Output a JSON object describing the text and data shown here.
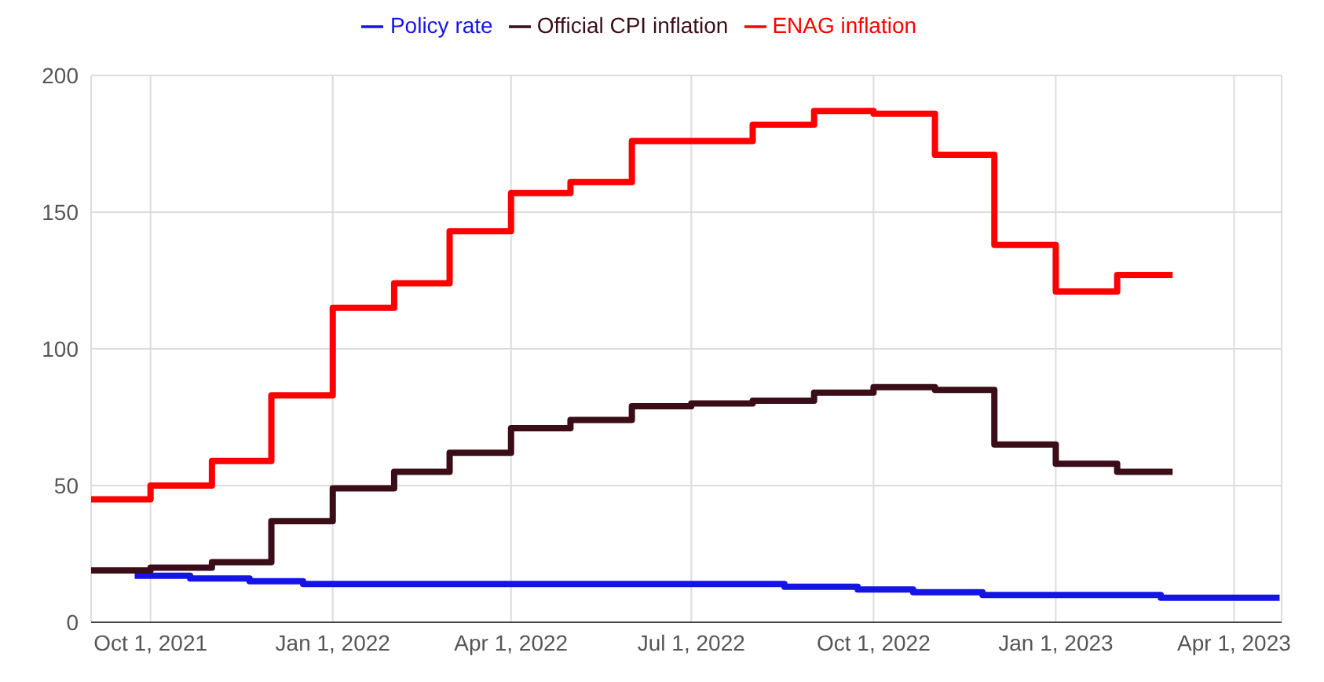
{
  "chart_data": {
    "type": "step",
    "legend": "top",
    "grid": true,
    "xlim": [
      "2021-09-01",
      "2023-04-25"
    ],
    "ylim": [
      0,
      200
    ],
    "yticks": [
      0,
      50,
      100,
      150,
      200
    ],
    "xticks": [
      {
        "value": "2021-10-01",
        "label": "Oct 1, 2021"
      },
      {
        "value": "2022-01-01",
        "label": "Jan 1, 2022"
      },
      {
        "value": "2022-04-01",
        "label": "Apr 1, 2022"
      },
      {
        "value": "2022-07-01",
        "label": "Jul 1, 2022"
      },
      {
        "value": "2022-10-01",
        "label": "Oct 1, 2022"
      },
      {
        "value": "2023-01-01",
        "label": "Jan 1, 2023"
      },
      {
        "value": "2023-04-01",
        "label": "Apr 1, 2023"
      }
    ],
    "series": [
      {
        "name": "Policy rate",
        "color": "#1414e6",
        "x": [
          "2021-09-23",
          "2021-10-21",
          "2021-11-20",
          "2021-12-17",
          "2022-08-17",
          "2022-09-23",
          "2022-10-21",
          "2022-11-25",
          "2023-02-23",
          "2023-04-24"
        ],
        "values": [
          17,
          16,
          15,
          14,
          13,
          12,
          11,
          10,
          9,
          9
        ]
      },
      {
        "name": "Official CPI inflation",
        "color": "#3a0d17",
        "x": [
          "2021-09-01",
          "2021-10-01",
          "2021-11-01",
          "2021-12-01",
          "2022-01-01",
          "2022-02-01",
          "2022-03-01",
          "2022-04-01",
          "2022-05-01",
          "2022-06-01",
          "2022-07-01",
          "2022-08-01",
          "2022-09-01",
          "2022-10-01",
          "2022-11-01",
          "2022-12-01",
          "2023-01-01",
          "2023-02-01",
          "2023-03-01"
        ],
        "values": [
          19,
          20,
          22,
          37,
          49,
          55,
          62,
          71,
          74,
          79,
          80,
          81,
          84,
          86,
          85,
          65,
          58,
          55,
          55
        ]
      },
      {
        "name": "ENAG inflation",
        "color": "#ff0000",
        "x": [
          "2021-09-01",
          "2021-10-01",
          "2021-11-01",
          "2021-12-01",
          "2022-01-01",
          "2022-02-01",
          "2022-03-01",
          "2022-04-01",
          "2022-05-01",
          "2022-06-01",
          "2022-07-01",
          "2022-08-01",
          "2022-09-01",
          "2022-10-01",
          "2022-11-01",
          "2022-12-01",
          "2023-01-01",
          "2023-02-01",
          "2023-03-01"
        ],
        "values": [
          45,
          50,
          59,
          83,
          115,
          124,
          143,
          157,
          161,
          176,
          176,
          182,
          187,
          186,
          171,
          138,
          121,
          127,
          127
        ]
      }
    ]
  }
}
